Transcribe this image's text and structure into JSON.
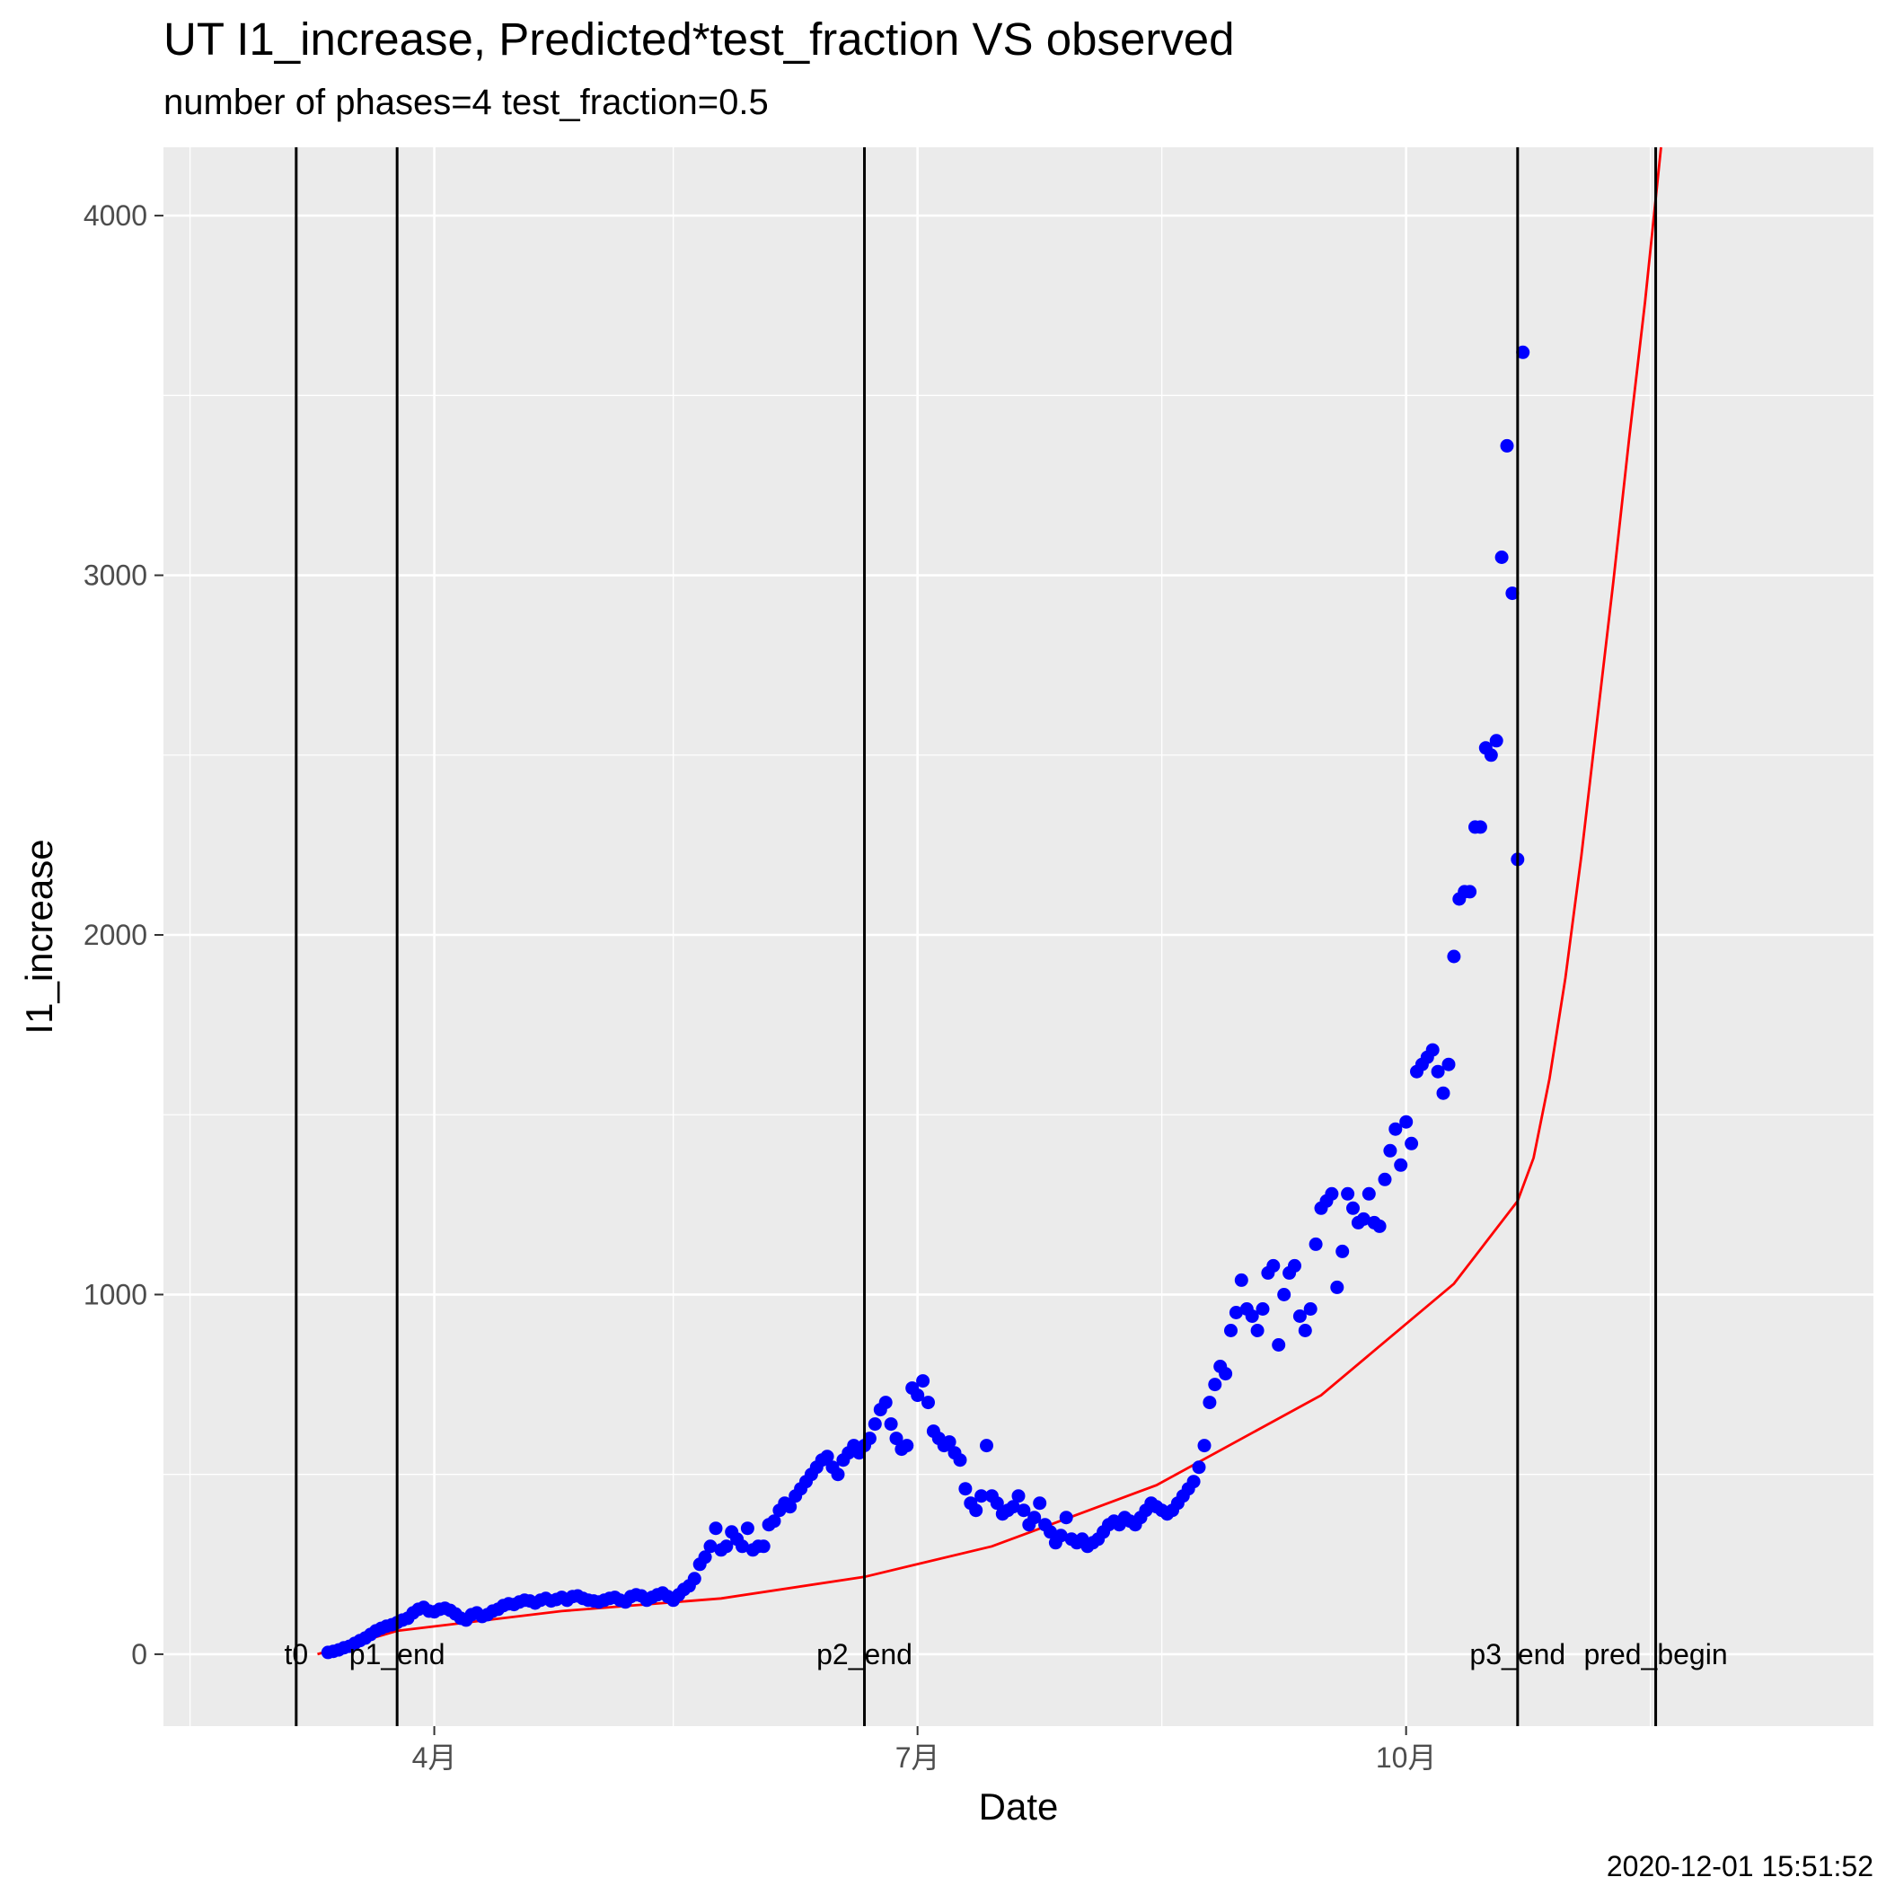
{
  "chart_data": {
    "type": "scatter",
    "title": "UT I1_increase, Predicted*test_fraction VS observed",
    "subtitle": "number of phases=4   test_fraction=0.5",
    "xlabel": "Date",
    "ylabel": "I1_increase",
    "timestamp": "2020-12-01 15:51:52",
    "x_tick_labels": [
      "4月",
      "7月",
      "10月"
    ],
    "y_ticks": [
      0,
      1000,
      2000,
      3000,
      4000
    ],
    "ylim": [
      -200,
      4190
    ],
    "xlim": [
      "2020-02-10",
      "2020-12-28"
    ],
    "grid": true,
    "colors": {
      "observed": "#0000ff",
      "predicted": "#ff0000",
      "phase_line": "#000000",
      "panel": "#ebebeb",
      "grid": "#ffffff"
    },
    "phase_lines": [
      {
        "label": "t0",
        "date": "2020-03-06"
      },
      {
        "label": "p1_end",
        "date": "2020-03-25"
      },
      {
        "label": "p2_end",
        "date": "2020-06-21"
      },
      {
        "label": "p3_end",
        "date": "2020-10-22"
      },
      {
        "label": "pred_begin",
        "date": "2020-11-17"
      }
    ],
    "series": [
      {
        "name": "observed",
        "type": "scatter",
        "start_date": "2020-03-12",
        "values": [
          5,
          8,
          12,
          18,
          22,
          30,
          38,
          45,
          55,
          65,
          72,
          78,
          82,
          88,
          95,
          100,
          115,
          125,
          130,
          120,
          118,
          125,
          128,
          122,
          112,
          100,
          95,
          110,
          115,
          105,
          110,
          120,
          125,
          135,
          140,
          138,
          145,
          150,
          148,
          142,
          150,
          155,
          148,
          152,
          158,
          150,
          160,
          162,
          155,
          150,
          148,
          145,
          150,
          155,
          158,
          150,
          145,
          160,
          165,
          162,
          150,
          158,
          165,
          170,
          160,
          150,
          165,
          180,
          190,
          210,
          250,
          270,
          300,
          350,
          290,
          300,
          340,
          320,
          300,
          350,
          290,
          300,
          300,
          360,
          370,
          400,
          420,
          410,
          440,
          460,
          480,
          500,
          520,
          540,
          550,
          520,
          500,
          540,
          560,
          580,
          560,
          580,
          600,
          640,
          680,
          700,
          640,
          600,
          570,
          580,
          740,
          720,
          760,
          700,
          620,
          600,
          580,
          590,
          560,
          540,
          460,
          420,
          400,
          440,
          580,
          440,
          420,
          390,
          400,
          410,
          440,
          400,
          360,
          380,
          420,
          360,
          340,
          310,
          330,
          380,
          320,
          310,
          320,
          300,
          310,
          320,
          340,
          360,
          370,
          360,
          380,
          370,
          360,
          380,
          400,
          420,
          410,
          400,
          390,
          400,
          420,
          440,
          460,
          480,
          520,
          580,
          700,
          750,
          800,
          780,
          900,
          950,
          1040,
          960,
          940,
          900,
          960,
          1060,
          1080,
          860,
          1000,
          1060,
          1080,
          940,
          900,
          960,
          1140,
          1240,
          1260,
          1280,
          1020,
          1120,
          1280,
          1240,
          1200,
          1210,
          1280,
          1200,
          1190,
          1320,
          1400,
          1460,
          1360,
          1480,
          1420,
          1620,
          1640,
          1660,
          1680,
          1620,
          1560,
          1640,
          1940,
          2100,
          2120,
          2120,
          2300,
          2300,
          2520,
          2500,
          2540,
          3050,
          3360,
          2950,
          2210,
          3620
        ]
      },
      {
        "name": "predicted",
        "type": "line",
        "points": [
          [
            "2020-03-10",
            0
          ],
          [
            "2020-03-25",
            65
          ],
          [
            "2020-04-25",
            120
          ],
          [
            "2020-05-25",
            155
          ],
          [
            "2020-06-21",
            215
          ],
          [
            "2020-07-15",
            300
          ],
          [
            "2020-08-15",
            470
          ],
          [
            "2020-09-15",
            720
          ],
          [
            "2020-10-10",
            1030
          ],
          [
            "2020-10-22",
            1260
          ],
          [
            "2020-10-25",
            1380
          ],
          [
            "2020-10-28",
            1600
          ],
          [
            "2020-10-31",
            1880
          ],
          [
            "2020-11-03",
            2220
          ],
          [
            "2020-11-06",
            2600
          ],
          [
            "2020-11-09",
            2980
          ],
          [
            "2020-11-12",
            3380
          ],
          [
            "2020-11-15",
            3760
          ],
          [
            "2020-11-18",
            4190
          ]
        ]
      }
    ]
  }
}
